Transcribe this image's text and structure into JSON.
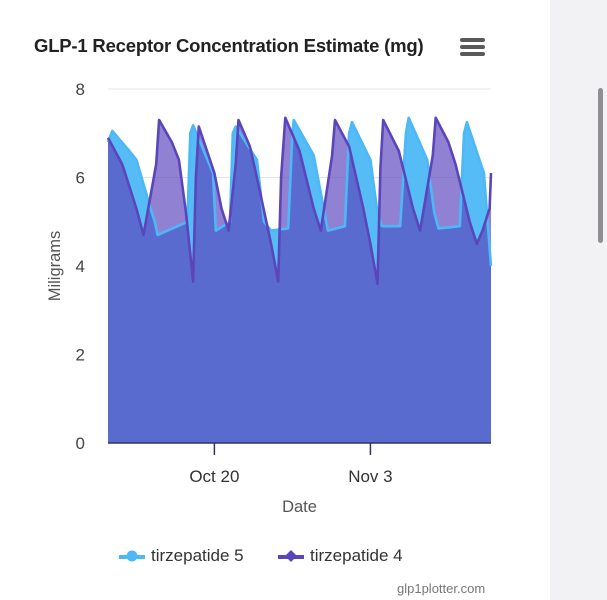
{
  "chart_data": {
    "type": "area",
    "title": "GLP-1 Receptor Concentration Estimate (mg)",
    "xlabel": "Date",
    "ylabel": "Miligrams",
    "ylim": [
      0,
      8
    ],
    "yticks": [
      0,
      2,
      4,
      6,
      8
    ],
    "xlim": [
      0,
      27
    ],
    "xticks": [
      {
        "x": 7.5,
        "label": "Oct 20"
      },
      {
        "x": 18.5,
        "label": "Nov 3"
      }
    ],
    "grid": true,
    "legend_position": "bottom-center",
    "series": [
      {
        "name": "tirzepatide 5",
        "color": "#4db8f6",
        "marker": "circle",
        "points": [
          [
            0,
            6.8
          ],
          [
            0.3,
            7.05
          ],
          [
            1.5,
            6.6
          ],
          [
            2,
            6.4
          ],
          [
            3,
            5.3
          ],
          [
            3.3,
            5.0
          ],
          [
            3.5,
            4.7
          ],
          [
            5.6,
            5.0
          ],
          [
            5.8,
            7.0
          ],
          [
            6,
            7.18
          ],
          [
            7.4,
            6.1
          ],
          [
            7.6,
            4.8
          ],
          [
            8.6,
            5.0
          ],
          [
            8.8,
            7.0
          ],
          [
            9,
            7.15
          ],
          [
            10.5,
            6.4
          ],
          [
            11,
            5.0
          ],
          [
            11.5,
            4.8
          ],
          [
            12.7,
            4.85
          ],
          [
            13,
            7.0
          ],
          [
            13.1,
            7.3
          ],
          [
            14.5,
            6.5
          ],
          [
            15.5,
            4.8
          ],
          [
            16.7,
            4.9
          ],
          [
            17,
            7.0
          ],
          [
            17.2,
            7.25
          ],
          [
            18.5,
            6.4
          ],
          [
            19,
            5.2
          ],
          [
            19.3,
            4.9
          ],
          [
            20.6,
            4.9
          ],
          [
            21,
            7.0
          ],
          [
            21.2,
            7.35
          ],
          [
            22.5,
            6.4
          ],
          [
            23,
            5.2
          ],
          [
            23.3,
            4.85
          ],
          [
            24.8,
            4.9
          ],
          [
            25.1,
            7.0
          ],
          [
            25.3,
            7.25
          ],
          [
            26.5,
            6.1
          ],
          [
            27,
            4.0
          ]
        ]
      },
      {
        "name": "tirzepatide 4",
        "color": "#5b45bc",
        "marker": "diamond",
        "points": [
          [
            0,
            6.9
          ],
          [
            1,
            6.3
          ],
          [
            2,
            5.3
          ],
          [
            2.5,
            4.7
          ],
          [
            3.4,
            6.3
          ],
          [
            3.6,
            7.3
          ],
          [
            4.5,
            6.8
          ],
          [
            5,
            6.4
          ],
          [
            5.5,
            5.2
          ],
          [
            6,
            3.65
          ],
          [
            6.2,
            6.0
          ],
          [
            6.4,
            7.15
          ],
          [
            7.5,
            6.1
          ],
          [
            8,
            5.3
          ],
          [
            8.5,
            4.8
          ],
          [
            9,
            6.3
          ],
          [
            9.2,
            7.3
          ],
          [
            10,
            6.7
          ],
          [
            10.5,
            6.0
          ],
          [
            11.5,
            4.5
          ],
          [
            12,
            3.65
          ],
          [
            12.2,
            6.0
          ],
          [
            12.5,
            7.35
          ],
          [
            13.5,
            6.6
          ],
          [
            14.5,
            5.3
          ],
          [
            15,
            4.8
          ],
          [
            15.8,
            6.5
          ],
          [
            16,
            7.3
          ],
          [
            17,
            6.7
          ],
          [
            18,
            5.3
          ],
          [
            18.5,
            4.5
          ],
          [
            19,
            3.6
          ],
          [
            19.2,
            6.2
          ],
          [
            19.4,
            7.3
          ],
          [
            20.5,
            6.6
          ],
          [
            21.5,
            5.3
          ],
          [
            22,
            4.8
          ],
          [
            22.9,
            6.5
          ],
          [
            23.1,
            7.35
          ],
          [
            24,
            6.8
          ],
          [
            24.5,
            6.3
          ],
          [
            25.5,
            5.0
          ],
          [
            26,
            4.5
          ],
          [
            26.4,
            4.8
          ],
          [
            26.9,
            5.3
          ],
          [
            27,
            6.1
          ]
        ]
      }
    ]
  },
  "credit": "glp1plotter.com"
}
